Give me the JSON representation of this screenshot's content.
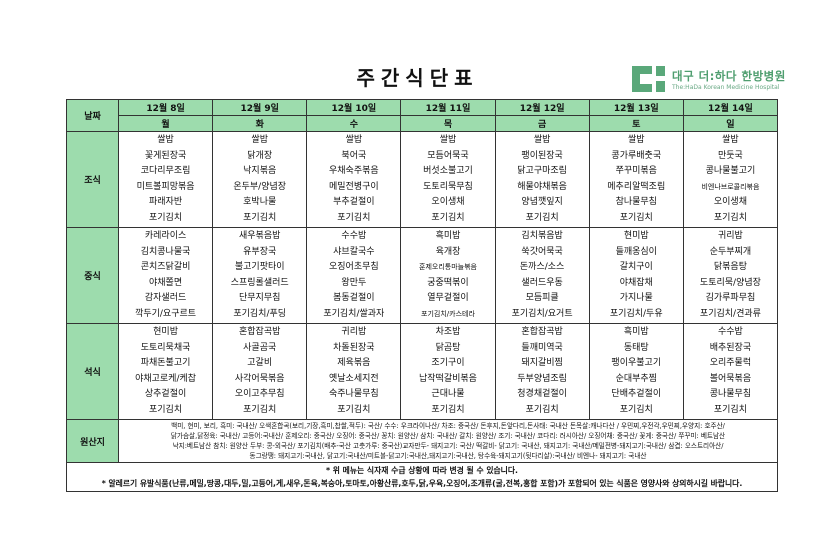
{
  "title": "주간식단표",
  "logo": {
    "korean": "대구 더:하다 한방병원",
    "english": "The:HaDa Korean Medicine Hospital",
    "color": "#5aa87a"
  },
  "colors": {
    "header_green": "#9ddcad"
  },
  "header": {
    "date_label": "날짜"
  },
  "days": [
    {
      "date": "12월 8일",
      "weekday": "월"
    },
    {
      "date": "12월 9일",
      "weekday": "화"
    },
    {
      "date": "12월 10일",
      "weekday": "수"
    },
    {
      "date": "12월 11일",
      "weekday": "목"
    },
    {
      "date": "12월 12일",
      "weekday": "금"
    },
    {
      "date": "12월 13일",
      "weekday": "토"
    },
    {
      "date": "12월 14일",
      "weekday": "일"
    }
  ],
  "meals": [
    {
      "label": "조식",
      "menus": [
        [
          "쌀밥",
          "꽃게된장국",
          "코다리무조림",
          "미트볼피망볶음",
          "파래자반",
          "포기김치"
        ],
        [
          "쌀밥",
          "닭개장",
          "낙지볶음",
          "온두부/양념장",
          "호박나물",
          "포기김치"
        ],
        [
          "쌀밥",
          "북어국",
          "우채숙주볶음",
          "메밀전병구이",
          "부추겉절이",
          "포기김치"
        ],
        [
          "쌀밥",
          "모듬어묵국",
          "버섯소불고기",
          "도토리묵무침",
          "오이생채",
          "포기김치"
        ],
        [
          "쌀밥",
          "팽이된장국",
          "닭고구마조림",
          "해물야채볶음",
          "양념깻잎지",
          "포기김치"
        ],
        [
          "쌀밥",
          "콩가루배춧국",
          "쭈꾸미볶음",
          "메추리알떡조림",
          "참나물무침",
          "포기김치"
        ],
        [
          "쌀밥",
          "만둣국",
          "콩나물불고기",
          "비엔나브로콜리볶음",
          "오이생채",
          "포기김치"
        ]
      ]
    },
    {
      "label": "중식",
      "menus": [
        [
          "카레라이스",
          "김치콩나물국",
          "콘치즈닭갈비",
          "야채쫄면",
          "감자샐러드",
          "깍두기/요구르트"
        ],
        [
          "새우볶음밥",
          "유부장국",
          "불고기팟타이",
          "스프링롤샐러드",
          "단무지무침",
          "포기김치/푸딩"
        ],
        [
          "수수밥",
          "샤브칼국수",
          "오징어초무침",
          "왕만두",
          "봄동겉절이",
          "포기김치/쌀과자"
        ],
        [
          "흑미밥",
          "육개장",
          "훈제오리통마늘볶음",
          "궁중떡볶이",
          "열무겉절이",
          "포기김치/카스테라"
        ],
        [
          "김치볶음밥",
          "쑥갓어묵국",
          "돈까스/소스",
          "샐러드우동",
          "모듬피클",
          "포기김치/요거트"
        ],
        [
          "현미밥",
          "들깨옹심이",
          "갈치구이",
          "야채잡채",
          "가지나물",
          "포기김치/두유"
        ],
        [
          "귀리밥",
          "순두부찌개",
          "닭볶음탕",
          "도토리묵/양념장",
          "김가루파무침",
          "포기김치/견과류"
        ]
      ]
    },
    {
      "label": "석식",
      "menus": [
        [
          "현미밥",
          "도토리묵채국",
          "파채돈불고기",
          "야채고로케/케찹",
          "상추겉절이",
          "포기김치"
        ],
        [
          "혼합잡곡밥",
          "사골곰국",
          "고갈비",
          "사각어묵볶음",
          "오이고추무침",
          "포기김치"
        ],
        [
          "귀리밥",
          "차돌된장국",
          "제육볶음",
          "옛날소세지전",
          "숙주나물무침",
          "포기김치"
        ],
        [
          "차조밥",
          "닭곰탕",
          "조기구이",
          "납작떡갈비볶음",
          "근대나물",
          "포기김치"
        ],
        [
          "혼합잡곡밥",
          "들깨미역국",
          "돼지갈비찜",
          "두부양념조림",
          "청경채겉절이",
          "포기김치"
        ],
        [
          "흑미밥",
          "동태탕",
          "팽이우불고기",
          "순대부추찜",
          "단배추겉절이",
          "포기김치"
        ],
        [
          "수수밥",
          "배추된장국",
          "오리주물럭",
          "볼어묵볶음",
          "콩나물무침",
          "포기김치"
        ]
      ]
    }
  ],
  "origin": {
    "label": "원산지",
    "lines": [
      "백미, 현미, 보리, 흑미: 국내산/ 오색혼합곡(보리,기장,흑미,찹쌀,적두): 국산/ 수수: 우크라이나산/ 차조: 중국산/ 돈후지,돈앞다리,돈사태: 국내산 돈목살:캐나다산 / 우민찌,우전각,우민찌,우양지: 호주산/",
      "닭가슴살,닭정육: 국내산/ 고등어:국내산/ 훈제오리: 중국산/ 오징어: 중국산/ 꽁치: 원양산/ 삼치: 국내산/ 갈치: 원양산/ 조기: 국내산/ 코다리: 러시아산/ 오징어채: 중국산/ 꽃게: 중국산/ 쭈꾸미: 베트남산",
      "낙지:베트남산 참치: 원양산 두부: 콩-외국산/ 포기김치(배추-국산 고춧가루: 중국산)교자만두- 돼지고기: 국산/ 떡갈비- 닭고기: 국내산, 돼지고기: 국내산/메밀전병-돼지고기:국내산/ 삼겹: 오스트리아산/",
      "동그랑땡: 돼지고기:국내산, 닭고기:국내산/미트볼-닭고기:국내산,돼지고기:국내산, 탕수육-돼지고기(뒷다리살):국내산/ 비엔나- 돼지고기: 국내산"
    ]
  },
  "notes": [
    "* 위 메뉴는 식자재 수급 상황에 따라 변경 될 수 있습니다.",
    "* 알레르기 유발식품(난류,메밀,땅콩,대두,밀,고등어,게,새우,돈육,복숭아,토마토,아황산류,호두,닭,우육,오징어,조개류(굴,전복,홍합 포함)가 포함되어 있는 식품은 영양사와 상의하시길 바랍니다."
  ]
}
